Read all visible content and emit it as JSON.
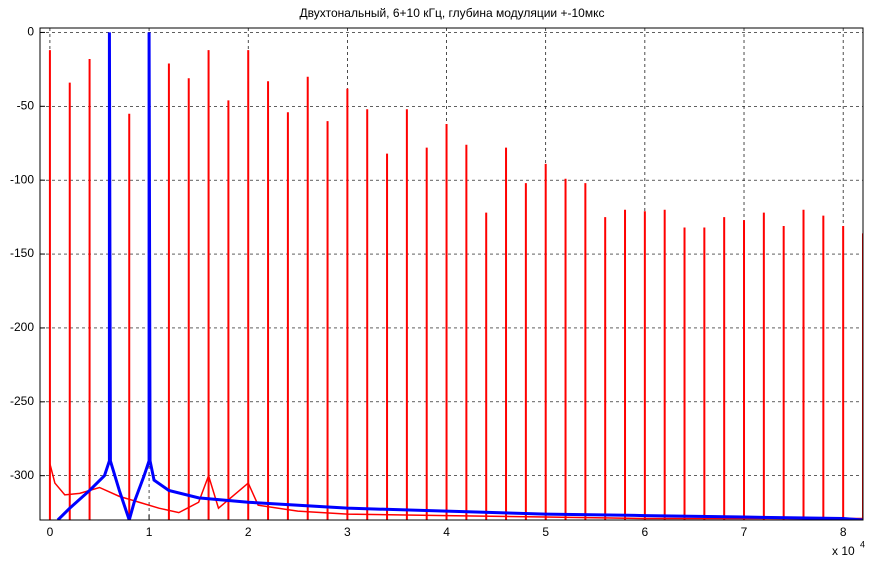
{
  "chart_data": {
    "type": "line",
    "title": "Двухтональный, 6+10 кГц, глубина модуляции +-10мкс",
    "x_multiplier": "x 10",
    "x_multiplier_exp": "4",
    "xlim": [
      -0.1,
      8.2
    ],
    "xticks": [
      0,
      1,
      2,
      3,
      4,
      5,
      6,
      7,
      8
    ],
    "ylim": [
      -330,
      3
    ],
    "yticks": [
      0,
      -50,
      -100,
      -150,
      -200,
      -250,
      -300
    ],
    "grid": true,
    "series": [
      {
        "color": "#ff0000",
        "style": "spikes",
        "x": [
          0,
          0.2,
          0.4,
          0.8,
          1.2,
          1.4,
          1.6,
          1.8,
          2.0,
          2.2,
          2.4,
          2.6,
          2.8,
          3.0,
          3.2,
          3.4,
          3.6,
          3.8,
          4.0,
          4.2,
          4.4,
          4.6,
          4.8,
          5.0,
          5.2,
          5.4,
          5.6,
          5.8,
          6.0,
          6.2,
          6.4,
          6.6,
          6.8,
          7.0,
          7.2,
          7.4,
          7.6,
          7.8,
          8.0,
          8.2
        ],
        "values": [
          -12,
          -34,
          -18,
          -55,
          -21,
          -31,
          -12,
          -46,
          -12,
          -33,
          -54,
          -30,
          -60,
          -38,
          -52,
          -82,
          -52,
          -78,
          -62,
          -76,
          -122,
          -78,
          -102,
          -89,
          -99,
          -102,
          -125,
          -120,
          -121,
          -120,
          -132,
          -132,
          -125,
          -127,
          -122,
          -131,
          -120,
          -124,
          -131,
          -136
        ]
      },
      {
        "color": "#ff0000",
        "style": "line",
        "x": [
          0,
          0.05,
          0.15,
          0.3,
          0.5,
          0.7,
          0.9,
          1.1,
          1.3,
          1.5,
          1.6,
          1.7,
          2.0,
          2.1,
          2.5,
          3,
          4,
          5,
          6,
          8.2
        ],
        "values": [
          -292,
          -305,
          -313,
          -312,
          -308,
          -314,
          -318,
          -322,
          -325,
          -318,
          -300,
          -322,
          -305,
          -320,
          -324,
          -326,
          -327,
          -328,
          -329,
          -329
        ]
      },
      {
        "color": "#0000ff",
        "style": "line",
        "x": [
          0.08,
          0.2,
          0.4,
          0.55,
          0.6,
          0.6,
          0.61,
          0.7,
          0.8,
          0.85,
          0.95,
          1.0,
          1.0,
          1.01,
          1.05,
          1.2,
          1.5,
          2.0,
          3.0,
          4.0,
          5.0,
          6.0,
          7.0,
          8.0,
          8.2
        ],
        "values": [
          -330,
          -322,
          -310,
          -300,
          -290,
          0,
          -290,
          -310,
          -330,
          -318,
          -300,
          -290,
          0,
          -290,
          -303,
          -310,
          -315,
          -318,
          -322,
          -324,
          -326,
          -327,
          -328,
          -329,
          -330
        ]
      }
    ]
  }
}
